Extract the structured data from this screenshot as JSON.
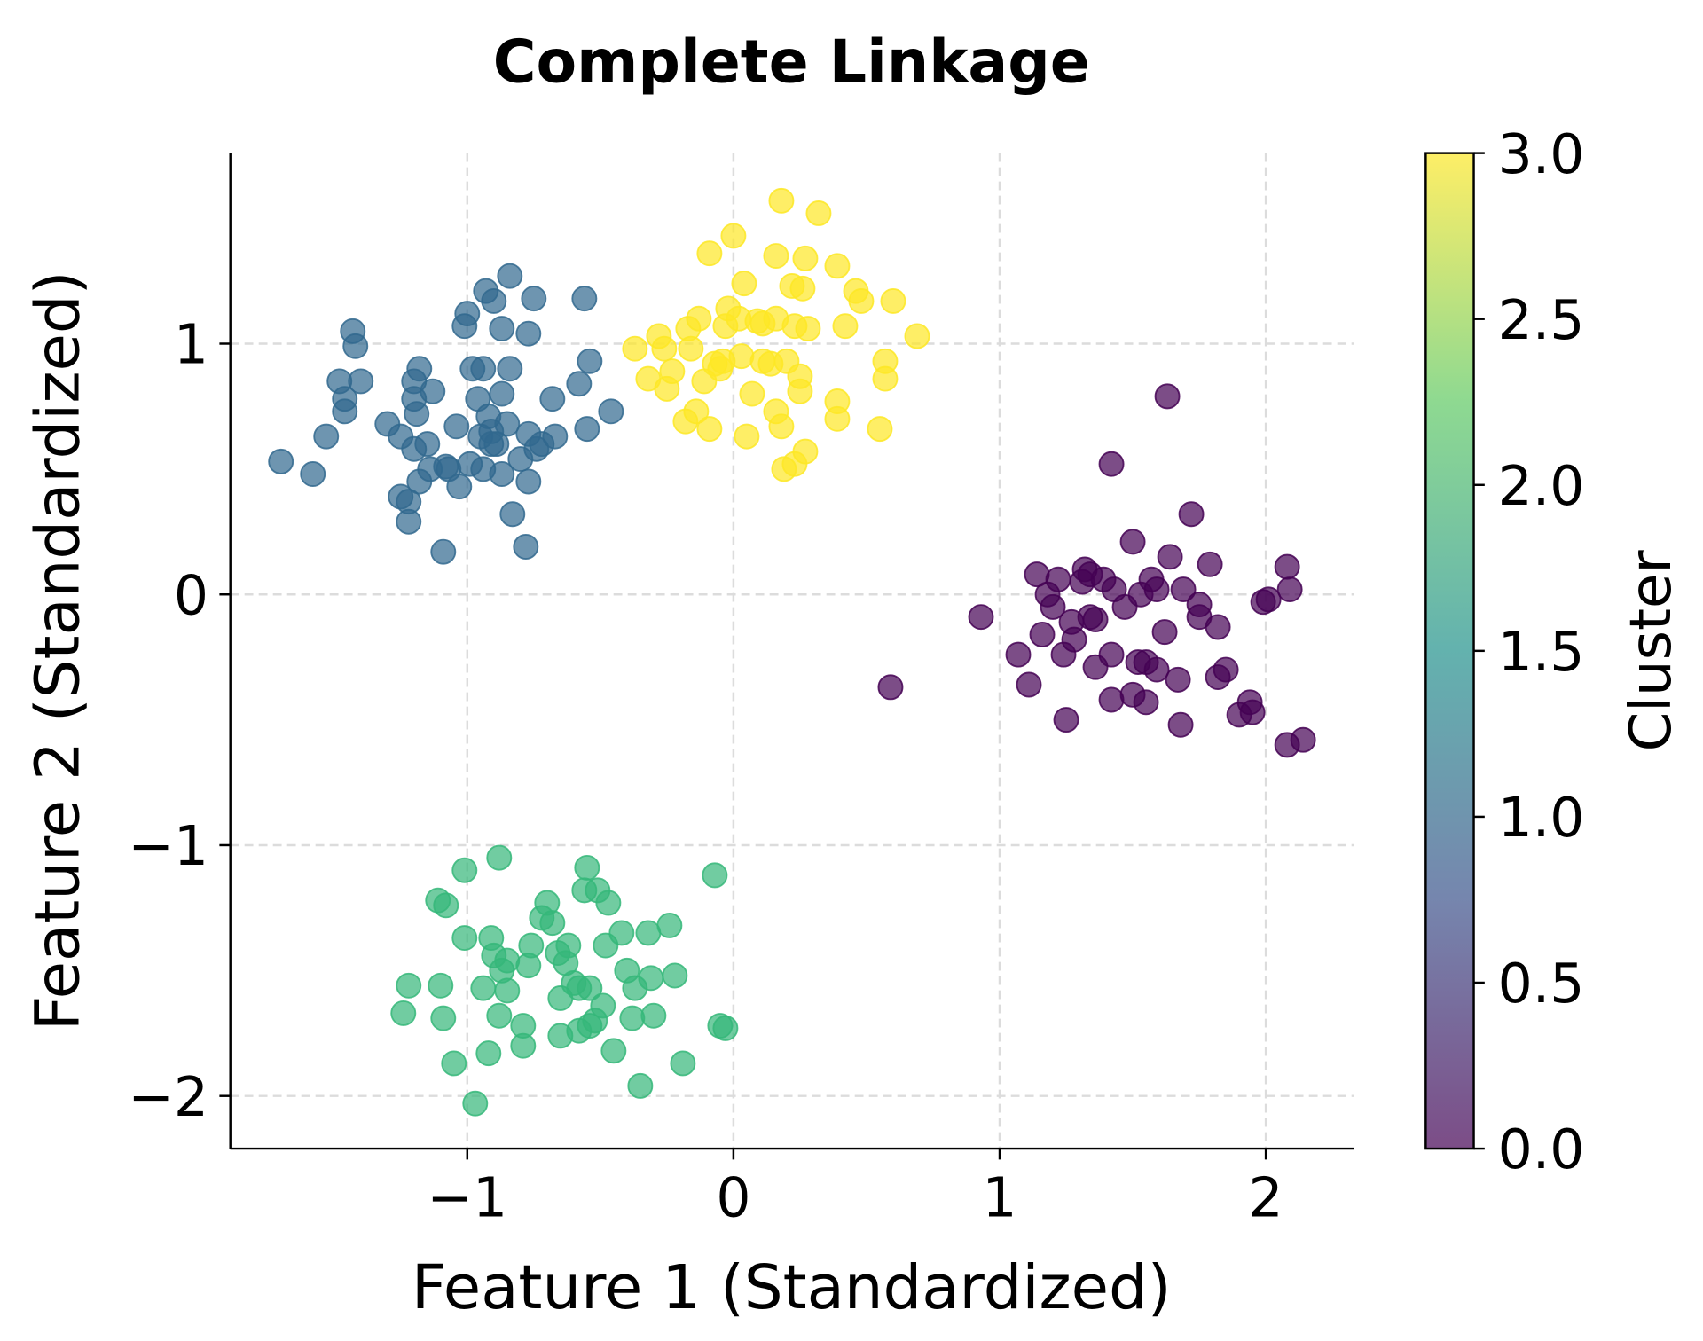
{
  "chart_data": {
    "type": "scatter",
    "title": "Complete Linkage",
    "xlabel": "Feature 1 (Standardized)",
    "ylabel": "Feature 2 (Standardized)",
    "xlim": [
      -1.89,
      2.33
    ],
    "ylim": [
      -2.21,
      1.76
    ],
    "xticks": [
      -1,
      0,
      1,
      2
    ],
    "xtick_labels": [
      "−1",
      "0",
      "1",
      "2"
    ],
    "yticks": [
      -2,
      -1,
      0,
      1
    ],
    "ytick_labels": [
      "−2",
      "−1",
      "0",
      "1"
    ],
    "grid": true,
    "colormap": "viridis",
    "alpha": 0.7,
    "colorbar": {
      "label": "Cluster",
      "range": [
        0,
        3
      ],
      "ticks": [
        0,
        0.5,
        1,
        1.5,
        2,
        2.5,
        3
      ],
      "tick_labels": [
        "0.0",
        "0.5",
        "1.0",
        "1.5",
        "2.0",
        "2.5",
        "3.0"
      ],
      "stops": [
        "#440154",
        "#3b528b",
        "#21918c",
        "#5ec962",
        "#fde725"
      ]
    },
    "series": [
      {
        "cluster": 0,
        "color": "#440154",
        "points": [
          [
            0.59,
            -0.37
          ],
          [
            0.93,
            -0.09
          ],
          [
            1.07,
            -0.24
          ],
          [
            1.11,
            -0.36
          ],
          [
            1.14,
            0.08
          ],
          [
            1.16,
            -0.16
          ],
          [
            1.18,
            0.0
          ],
          [
            1.22,
            0.06
          ],
          [
            1.24,
            -0.24
          ],
          [
            1.25,
            -0.5
          ],
          [
            1.27,
            -0.11
          ],
          [
            1.28,
            -0.18
          ],
          [
            1.31,
            0.05
          ],
          [
            1.34,
            0.08
          ],
          [
            1.36,
            -0.29
          ],
          [
            1.36,
            -0.1
          ],
          [
            1.39,
            0.06
          ],
          [
            1.42,
            0.52
          ],
          [
            1.42,
            -0.42
          ],
          [
            1.42,
            -0.24
          ],
          [
            1.43,
            0.02
          ],
          [
            1.47,
            -0.05
          ],
          [
            1.5,
            0.21
          ],
          [
            1.5,
            -0.4
          ],
          [
            1.52,
            -0.27
          ],
          [
            1.53,
            0.0
          ],
          [
            1.55,
            -0.43
          ],
          [
            1.57,
            0.06
          ],
          [
            1.59,
            -0.3
          ],
          [
            1.62,
            -0.15
          ],
          [
            1.63,
            0.79
          ],
          [
            1.64,
            0.15
          ],
          [
            1.67,
            -0.34
          ],
          [
            1.68,
            -0.52
          ],
          [
            1.69,
            0.02
          ],
          [
            1.72,
            0.32
          ],
          [
            1.75,
            -0.04
          ],
          [
            1.75,
            -0.09
          ],
          [
            1.79,
            0.12
          ],
          [
            1.82,
            -0.13
          ],
          [
            1.82,
            -0.33
          ],
          [
            1.85,
            -0.3
          ],
          [
            1.9,
            -0.48
          ],
          [
            1.94,
            -0.43
          ],
          [
            1.95,
            -0.47
          ],
          [
            1.99,
            -0.03
          ],
          [
            2.01,
            -0.02
          ],
          [
            2.08,
            0.11
          ],
          [
            2.09,
            0.02
          ],
          [
            2.08,
            -0.6
          ],
          [
            2.14,
            -0.58
          ],
          [
            1.2,
            -0.05
          ],
          [
            1.55,
            -0.27
          ],
          [
            1.32,
            0.1
          ],
          [
            1.59,
            0.02
          ],
          [
            1.34,
            -0.09
          ]
        ]
      },
      {
        "cluster": 1,
        "color": "#31688e",
        "points": [
          [
            -1.7,
            0.53
          ],
          [
            -1.58,
            0.48
          ],
          [
            -1.53,
            0.63
          ],
          [
            -1.46,
            0.73
          ],
          [
            -1.46,
            0.78
          ],
          [
            -1.48,
            0.85
          ],
          [
            -1.4,
            0.85
          ],
          [
            -1.43,
            1.05
          ],
          [
            -1.42,
            0.99
          ],
          [
            -1.3,
            0.68
          ],
          [
            -1.25,
            0.63
          ],
          [
            -1.25,
            0.39
          ],
          [
            -1.22,
            0.29
          ],
          [
            -1.22,
            0.37
          ],
          [
            -1.2,
            0.85
          ],
          [
            -1.18,
            0.9
          ],
          [
            -1.2,
            0.78
          ],
          [
            -1.19,
            0.72
          ],
          [
            -1.13,
            0.81
          ],
          [
            -1.2,
            0.58
          ],
          [
            -1.18,
            0.45
          ],
          [
            -1.15,
            0.6
          ],
          [
            -1.14,
            0.5
          ],
          [
            -1.09,
            0.17
          ],
          [
            -1.07,
            0.5
          ],
          [
            -1.03,
            0.43
          ],
          [
            -1.04,
            0.67
          ],
          [
            -1.01,
            1.07
          ],
          [
            -1.0,
            1.12
          ],
          [
            -0.98,
            0.9
          ],
          [
            -0.96,
            0.78
          ],
          [
            -0.99,
            0.52
          ],
          [
            -0.95,
            0.63
          ],
          [
            -0.94,
            0.9
          ],
          [
            -0.93,
            1.21
          ],
          [
            -0.9,
            1.17
          ],
          [
            -0.92,
            0.71
          ],
          [
            -0.91,
            0.65
          ],
          [
            -0.89,
            0.6
          ],
          [
            -0.94,
            0.5
          ],
          [
            -0.87,
            0.48
          ],
          [
            -0.87,
            1.06
          ],
          [
            -0.87,
            0.8
          ],
          [
            -0.85,
            0.68
          ],
          [
            -0.84,
            1.27
          ],
          [
            -0.84,
            0.9
          ],
          [
            -0.83,
            0.32
          ],
          [
            -0.8,
            0.54
          ],
          [
            -0.77,
            0.45
          ],
          [
            -0.78,
            0.19
          ],
          [
            -0.77,
            1.04
          ],
          [
            -0.75,
            1.18
          ],
          [
            -0.77,
            0.64
          ],
          [
            -0.74,
            0.58
          ],
          [
            -0.72,
            0.6
          ],
          [
            -0.68,
            0.78
          ],
          [
            -0.67,
            0.63
          ],
          [
            -0.58,
            0.84
          ],
          [
            -0.55,
            0.66
          ],
          [
            -0.54,
            0.93
          ],
          [
            -0.56,
            1.18
          ],
          [
            -0.46,
            0.73
          ],
          [
            -0.91,
            0.6
          ],
          [
            -1.08,
            0.51
          ]
        ]
      },
      {
        "cluster": 2,
        "color": "#35b779",
        "points": [
          [
            -1.24,
            -1.67
          ],
          [
            -1.22,
            -1.56
          ],
          [
            -1.11,
            -1.22
          ],
          [
            -1.1,
            -1.56
          ],
          [
            -1.08,
            -1.24
          ],
          [
            -1.09,
            -1.69
          ],
          [
            -1.05,
            -1.87
          ],
          [
            -1.01,
            -1.1
          ],
          [
            -1.01,
            -1.37
          ],
          [
            -0.97,
            -2.03
          ],
          [
            -0.94,
            -1.57
          ],
          [
            -0.92,
            -1.83
          ],
          [
            -0.91,
            -1.37
          ],
          [
            -0.9,
            -1.44
          ],
          [
            -0.88,
            -1.05
          ],
          [
            -0.88,
            -1.68
          ],
          [
            -0.87,
            -1.5
          ],
          [
            -0.85,
            -1.58
          ],
          [
            -0.85,
            -1.46
          ],
          [
            -0.79,
            -1.72
          ],
          [
            -0.79,
            -1.8
          ],
          [
            -0.77,
            -1.48
          ],
          [
            -0.76,
            -1.4
          ],
          [
            -0.72,
            -1.29
          ],
          [
            -0.7,
            -1.23
          ],
          [
            -0.68,
            -1.31
          ],
          [
            -0.66,
            -1.43
          ],
          [
            -0.65,
            -1.61
          ],
          [
            -0.65,
            -1.76
          ],
          [
            -0.63,
            -1.47
          ],
          [
            -0.62,
            -1.4
          ],
          [
            -0.6,
            -1.55
          ],
          [
            -0.58,
            -1.74
          ],
          [
            -0.56,
            -1.18
          ],
          [
            -0.55,
            -1.09
          ],
          [
            -0.54,
            -1.57
          ],
          [
            -0.54,
            -1.72
          ],
          [
            -0.51,
            -1.18
          ],
          [
            -0.49,
            -1.64
          ],
          [
            -0.48,
            -1.4
          ],
          [
            -0.47,
            -1.23
          ],
          [
            -0.45,
            -1.82
          ],
          [
            -0.42,
            -1.35
          ],
          [
            -0.4,
            -1.5
          ],
          [
            -0.38,
            -1.69
          ],
          [
            -0.37,
            -1.57
          ],
          [
            -0.35,
            -1.96
          ],
          [
            -0.32,
            -1.35
          ],
          [
            -0.31,
            -1.53
          ],
          [
            -0.3,
            -1.68
          ],
          [
            -0.24,
            -1.32
          ],
          [
            -0.22,
            -1.52
          ],
          [
            -0.19,
            -1.87
          ],
          [
            -0.07,
            -1.12
          ],
          [
            -0.05,
            -1.72
          ],
          [
            -0.03,
            -1.73
          ],
          [
            -0.58,
            -1.57
          ],
          [
            -0.52,
            -1.7
          ]
        ]
      },
      {
        "cluster": 3,
        "color": "#fde725",
        "points": [
          [
            -0.37,
            0.98
          ],
          [
            -0.32,
            0.86
          ],
          [
            -0.28,
            1.03
          ],
          [
            -0.26,
            0.98
          ],
          [
            -0.25,
            0.82
          ],
          [
            -0.23,
            0.89
          ],
          [
            -0.18,
            0.69
          ],
          [
            -0.17,
            1.06
          ],
          [
            -0.16,
            0.98
          ],
          [
            -0.14,
            0.73
          ],
          [
            -0.13,
            1.1
          ],
          [
            -0.11,
            0.85
          ],
          [
            -0.09,
            1.36
          ],
          [
            -0.09,
            0.66
          ],
          [
            -0.07,
            0.92
          ],
          [
            -0.05,
            0.9
          ],
          [
            -0.03,
            1.07
          ],
          [
            -0.02,
            1.14
          ],
          [
            0.0,
            1.43
          ],
          [
            0.02,
            1.1
          ],
          [
            0.04,
            1.24
          ],
          [
            0.05,
            0.63
          ],
          [
            0.03,
            0.95
          ],
          [
            0.07,
            0.8
          ],
          [
            0.09,
            1.09
          ],
          [
            0.11,
            1.08
          ],
          [
            0.14,
            0.92
          ],
          [
            0.16,
            1.1
          ],
          [
            0.16,
            1.35
          ],
          [
            0.16,
            0.73
          ],
          [
            0.18,
            1.57
          ],
          [
            0.18,
            0.67
          ],
          [
            0.2,
            0.93
          ],
          [
            0.22,
            1.23
          ],
          [
            0.23,
            1.07
          ],
          [
            0.23,
            0.52
          ],
          [
            0.25,
            0.87
          ],
          [
            0.25,
            0.81
          ],
          [
            0.27,
            1.34
          ],
          [
            0.27,
            0.57
          ],
          [
            0.28,
            1.06
          ],
          [
            0.32,
            1.52
          ],
          [
            0.39,
            1.31
          ],
          [
            0.39,
            0.77
          ],
          [
            0.39,
            0.7
          ],
          [
            0.42,
            1.07
          ],
          [
            0.46,
            1.21
          ],
          [
            0.48,
            1.17
          ],
          [
            0.55,
            0.66
          ],
          [
            0.57,
            0.93
          ],
          [
            0.57,
            0.86
          ],
          [
            0.6,
            1.17
          ],
          [
            0.69,
            1.03
          ],
          [
            0.19,
            0.5
          ],
          [
            0.26,
            1.22
          ],
          [
            0.11,
            0.93
          ],
          [
            -0.04,
            0.93
          ]
        ]
      }
    ]
  }
}
